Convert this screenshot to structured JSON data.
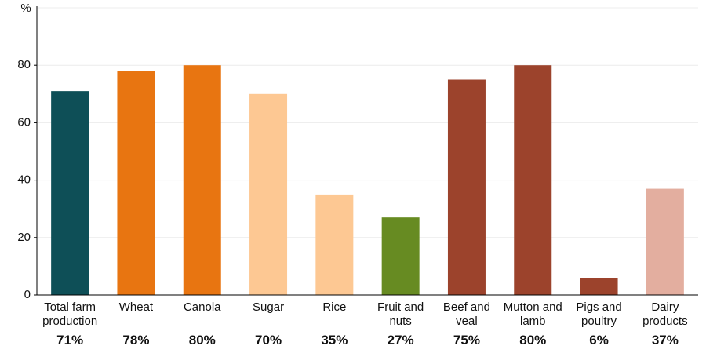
{
  "chart_data": {
    "type": "bar",
    "ylabel": "%",
    "categories": [
      "Total farm production",
      "Wheat",
      "Canola",
      "Sugar",
      "Rice",
      "Fruit and nuts",
      "Beef and veal",
      "Mutton and lamb",
      "Pigs and poultry",
      "Dairy products"
    ],
    "values": [
      71,
      78,
      80,
      70,
      35,
      27,
      75,
      80,
      6,
      37
    ],
    "value_labels": [
      "71%",
      "78%",
      "80%",
      "70%",
      "35%",
      "27%",
      "75%",
      "80%",
      "6%",
      "37%"
    ],
    "colors": [
      "#0e4f57",
      "#e87511",
      "#e87511",
      "#fdc893",
      "#fdc893",
      "#678b22",
      "#9c432c",
      "#9c432c",
      "#9c432c",
      "#e3ae9f"
    ],
    "ylim": [
      0,
      100
    ],
    "yticks": [
      0,
      20,
      40,
      60,
      80
    ],
    "grid": true
  }
}
